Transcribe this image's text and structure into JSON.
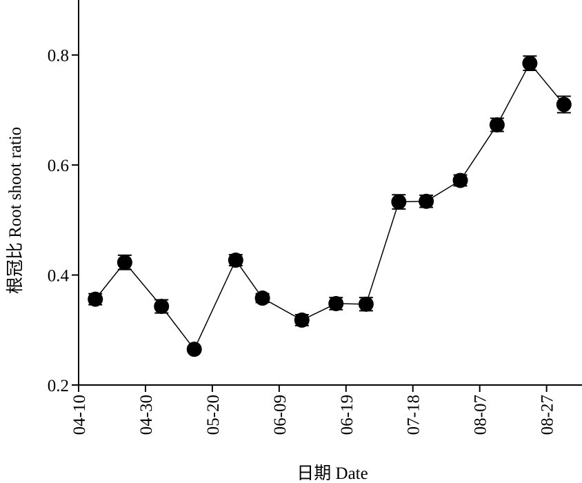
{
  "chart_data": {
    "type": "line",
    "x_label": "日期 Date",
    "y_label": "根冠比 Root shoot ratio",
    "x": [
      0.25,
      0.69,
      1.24,
      1.73,
      2.35,
      2.75,
      3.34,
      3.85,
      4.3,
      4.79,
      5.2,
      5.71,
      6.26,
      6.75,
      7.26
    ],
    "values": [
      0.356,
      0.423,
      0.343,
      0.265,
      0.427,
      0.358,
      0.318,
      0.348,
      0.347,
      0.533,
      0.534,
      0.572,
      0.673,
      0.785,
      0.71
    ],
    "errors": [
      0.01,
      0.013,
      0.012,
      0.005,
      0.01,
      0.008,
      0.01,
      0.011,
      0.012,
      0.013,
      0.011,
      0.01,
      0.012,
      0.013,
      0.015
    ],
    "color": "#000000",
    "xlim": [
      0,
      7.53
    ],
    "xticks": [
      {
        "value": 0,
        "label": "04-10"
      },
      {
        "value": 1,
        "label": "04-30"
      },
      {
        "value": 2,
        "label": "05-20"
      },
      {
        "value": 3,
        "label": "06-09"
      },
      {
        "value": 4,
        "label": "06-19"
      },
      {
        "value": 5,
        "label": "07-18"
      },
      {
        "value": 6,
        "label": "08-07"
      },
      {
        "value": 7,
        "label": "08-27"
      }
    ],
    "ylim": [
      0.2,
      0.9
    ],
    "yticks": [
      0.2,
      0.4,
      0.6,
      0.8
    ]
  }
}
